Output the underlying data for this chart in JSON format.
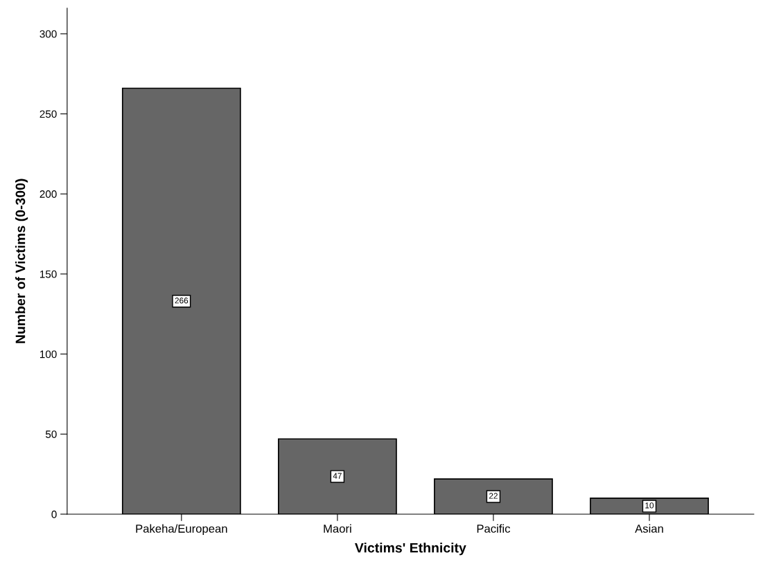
{
  "chart_data": {
    "type": "bar",
    "xlabel": "Victims' Ethnicity",
    "ylabel": "Number of Victims (0-300)",
    "categories": [
      "Pakeha/European",
      "Maori",
      "Pacific",
      "Asian"
    ],
    "values": [
      266,
      47,
      22,
      10
    ],
    "color": "#666666",
    "ylim": [
      0,
      316
    ],
    "yticks": [
      0,
      50,
      100,
      150,
      200,
      250,
      300
    ],
    "grid": false,
    "data_labels": true
  }
}
